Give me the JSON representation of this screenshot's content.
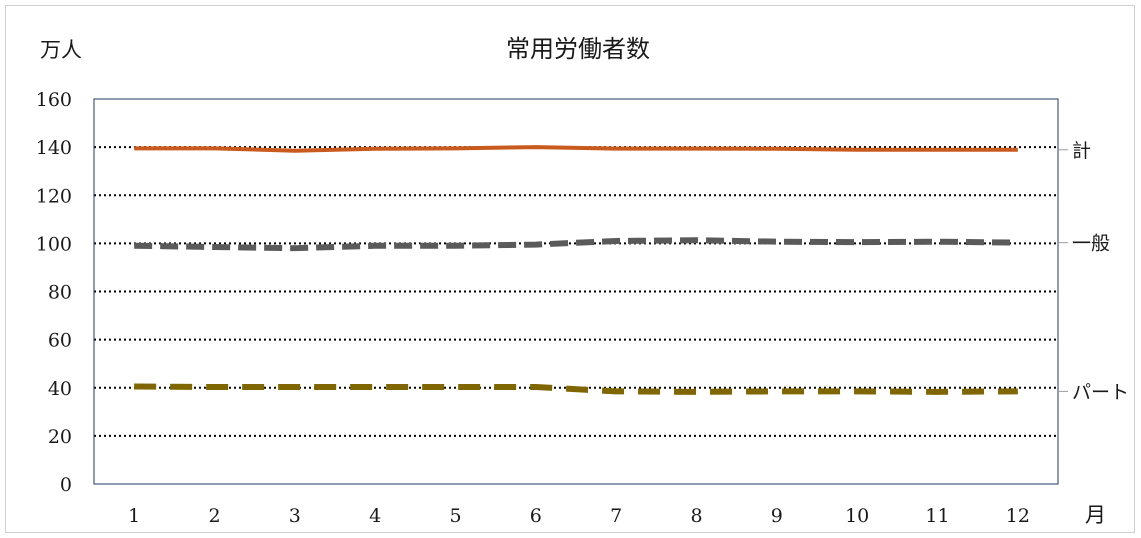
{
  "chart_data": {
    "type": "line",
    "title": "常用労働者数",
    "ylabel": "万人",
    "xlabel": "月",
    "ylim": [
      0,
      160
    ],
    "yticks": [
      0,
      20,
      40,
      60,
      80,
      100,
      120,
      140,
      160
    ],
    "categories": [
      "1",
      "2",
      "3",
      "4",
      "5",
      "6",
      "7",
      "8",
      "9",
      "10",
      "11",
      "12"
    ],
    "grid": true,
    "legend": "right",
    "series": [
      {
        "name": "計",
        "color": "#c85a1e",
        "style": "solid",
        "values": [
          139.5,
          139.5,
          138.5,
          139.3,
          139.5,
          140.0,
          139.4,
          139.4,
          139.3,
          138.9,
          138.9,
          138.9
        ]
      },
      {
        "name": "一般",
        "color": "#5a5a5a",
        "style": "dashed",
        "values": [
          99.0,
          98.5,
          98.0,
          99.0,
          99.0,
          99.5,
          101.0,
          101.3,
          100.7,
          100.5,
          100.7,
          100.3
        ]
      },
      {
        "name": "パート",
        "color": "#806600",
        "style": "dashed",
        "values": [
          40.5,
          40.3,
          40.3,
          40.3,
          40.3,
          40.3,
          38.5,
          38.3,
          38.5,
          38.5,
          38.3,
          38.5
        ]
      }
    ]
  }
}
